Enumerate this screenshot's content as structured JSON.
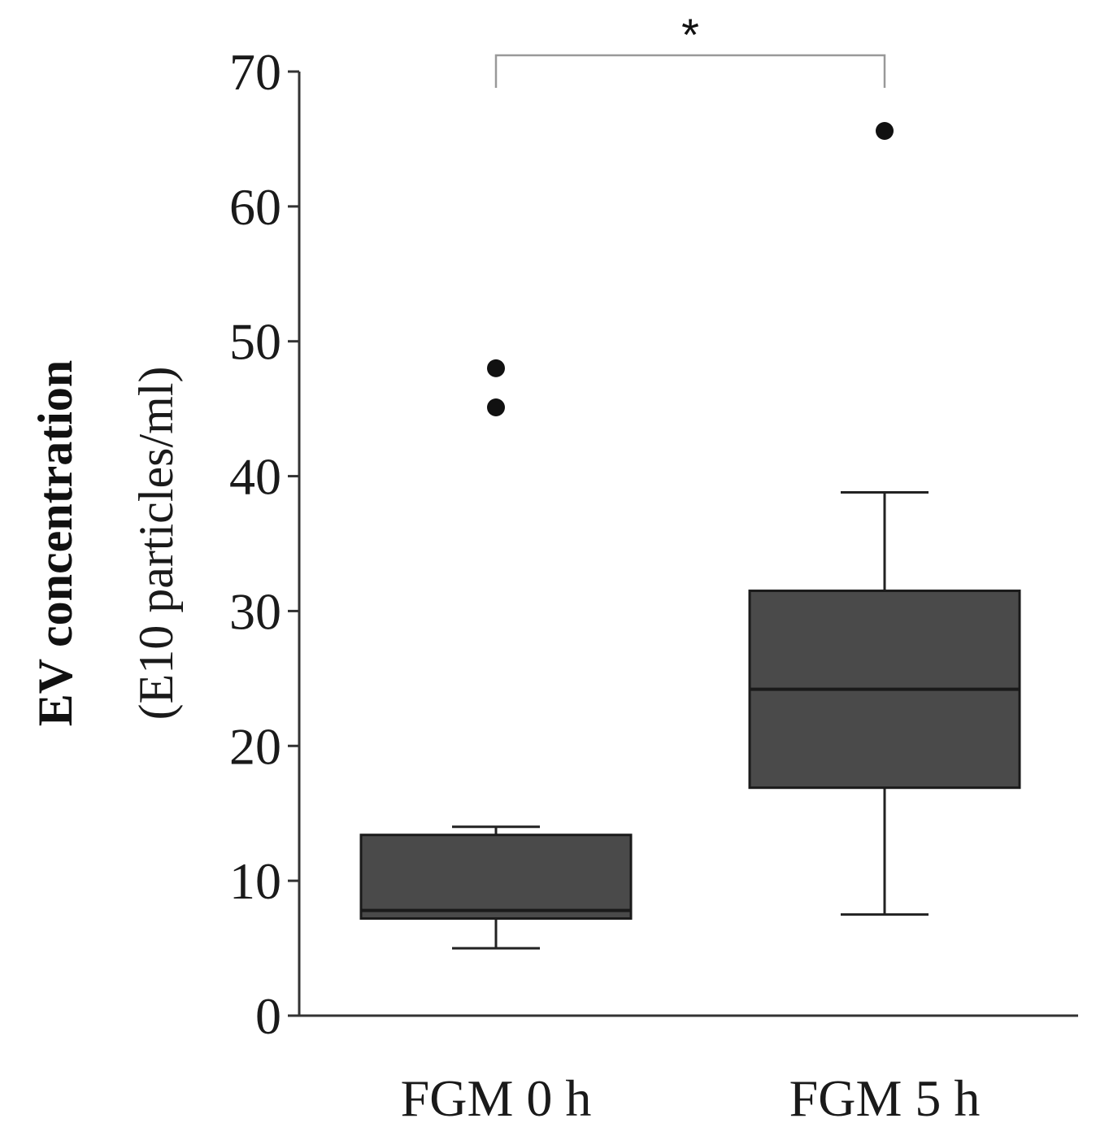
{
  "chart_data": {
    "type": "box",
    "ylabel_main": "EV concentration",
    "ylabel_sub": "(E10 particles/ml)",
    "ylim": [
      0,
      70
    ],
    "yticks": [
      0,
      10,
      20,
      30,
      40,
      50,
      60,
      70
    ],
    "ytick_labels": [
      "0",
      "10",
      "20",
      "30",
      "40",
      "50",
      "60",
      "70"
    ],
    "grid": false,
    "box_color": "#4a4a4a",
    "categories": [
      "FGM 0 h",
      "FGM 5 h"
    ],
    "boxes": [
      {
        "category": "FGM 0 h",
        "whisker_low": 5.0,
        "q1": 7.2,
        "median": 7.8,
        "q3": 13.4,
        "whisker_high": 14.0,
        "outliers": [
          45.1,
          48.0
        ]
      },
      {
        "category": "FGM 5 h",
        "whisker_low": 7.5,
        "q1": 16.9,
        "median": 24.2,
        "q3": 31.5,
        "whisker_high": 38.8,
        "outliers": [
          65.6
        ]
      }
    ],
    "significance": {
      "between": [
        "FGM 0 h",
        "FGM 5 h"
      ],
      "label": "*"
    }
  }
}
